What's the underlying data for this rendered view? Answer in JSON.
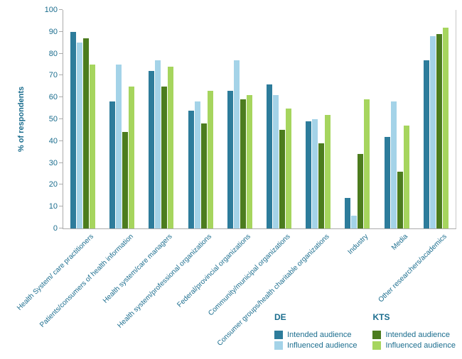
{
  "chart_data": {
    "type": "bar",
    "title": "",
    "xlabel": "",
    "ylabel": "% of respondents",
    "ylim": [
      0,
      100
    ],
    "ytick_step": 10,
    "grid": false,
    "legend_position": "bottom-right",
    "categories": [
      "Health System/ care practitioners",
      "Patients/consumers of health information",
      "Health system/care managers",
      "Health system/professional organizations",
      "Federal/provincial organizations",
      "Community/municipal organizations",
      "Consumer groups/health charitable organizations",
      "Industry",
      "Media",
      "Other researchers/academics"
    ],
    "series": [
      {
        "name": "DE Intended audience",
        "group": "DE",
        "label": "Intended audience",
        "color": "#2d7c9b",
        "values": [
          90,
          58,
          72,
          54,
          63,
          66,
          49,
          14,
          42,
          77
        ]
      },
      {
        "name": "DE Influenced audience",
        "group": "DE",
        "label": "Influenced audience",
        "color": "#a4d3e8",
        "values": [
          85,
          75,
          77,
          58,
          77,
          61,
          50,
          6,
          58,
          88
        ]
      },
      {
        "name": "KTS Intended audience",
        "group": "KTS",
        "label": "Intended audience",
        "color": "#4c7c1e",
        "values": [
          87,
          44,
          65,
          48,
          59,
          45,
          39,
          34,
          26,
          89
        ]
      },
      {
        "name": "KTS Influenced audience",
        "group": "KTS",
        "label": "Influenced audience",
        "color": "#a6d55e",
        "values": [
          75,
          65,
          74,
          63,
          61,
          55,
          52,
          59,
          47,
          92
        ]
      }
    ],
    "legend": {
      "groups": [
        {
          "title": "DE",
          "entries": [
            {
              "label": "Intended audience",
              "color": "#2d7c9b"
            },
            {
              "label": "Influenced audience",
              "color": "#a4d3e8"
            }
          ]
        },
        {
          "title": "KTS",
          "entries": [
            {
              "label": "Intended audience",
              "color": "#4c7c1e"
            },
            {
              "label": "Influenced audience",
              "color": "#a6d55e"
            }
          ]
        }
      ]
    }
  }
}
